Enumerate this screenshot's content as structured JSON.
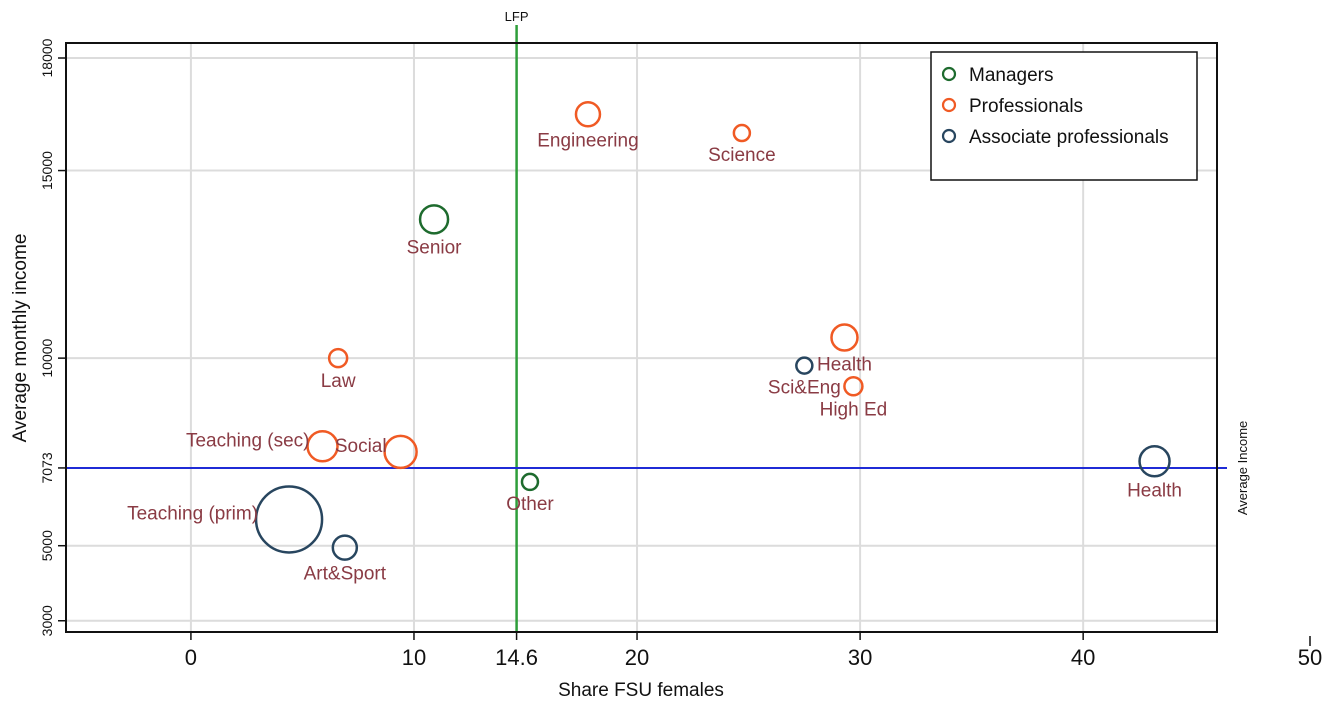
{
  "chart_data": {
    "type": "scatter",
    "title": "",
    "xlabel": "Share FSU females",
    "ylabel": "Average monthly income",
    "xlim": [
      -5.6,
      46
    ],
    "ylim": [
      2700,
      18400
    ],
    "xticks": [
      "0",
      "10",
      "14.6",
      "20",
      "30",
      "40"
    ],
    "xtick_values": [
      0,
      10,
      14.6,
      20,
      30,
      40
    ],
    "extra_xtick": {
      "label": "50",
      "value": 50
    },
    "yticks": [
      "3000",
      "5000",
      "7073",
      "10000",
      "15000",
      "18000"
    ],
    "ytick_values": [
      3000,
      5000,
      7073,
      10000,
      15000,
      18000
    ],
    "grid": true,
    "legend_position": "top-right",
    "reference_lines": {
      "vertical": {
        "x": 14.6,
        "label": "LFP",
        "color": "#2e9e3a"
      },
      "horizontal": {
        "y": 7073,
        "label": "Average Income",
        "color": "#1f2bd6"
      }
    },
    "series": [
      {
        "name": "Managers",
        "color": "#1e6b2e",
        "points": [
          {
            "label": "Senior",
            "x": 10.9,
            "y": 13700,
            "size": 14,
            "label_pos": "below"
          },
          {
            "label": "Other",
            "x": 15.2,
            "y": 6700,
            "size": 8,
            "label_pos": "below"
          }
        ]
      },
      {
        "name": "Professionals",
        "color": "#f05a24",
        "points": [
          {
            "label": "Engineering",
            "x": 17.8,
            "y": 16500,
            "size": 12,
            "label_pos": "below"
          },
          {
            "label": "Science",
            "x": 24.7,
            "y": 16000,
            "size": 8,
            "label_pos": "below"
          },
          {
            "label": "Law",
            "x": 6.6,
            "y": 10000,
            "size": 9,
            "label_pos": "below"
          },
          {
            "label": "Health",
            "x": 29.3,
            "y": 10550,
            "size": 13,
            "label_pos": "below"
          },
          {
            "label": "High Ed",
            "x": 29.7,
            "y": 9250,
            "size": 9,
            "label_pos": "below"
          },
          {
            "label": "Teaching (sec)",
            "x": 5.9,
            "y": 7650,
            "size": 15,
            "label_pos": "left"
          },
          {
            "label": "Social",
            "x": 9.4,
            "y": 7500,
            "size": 16,
            "label_pos": "left"
          }
        ]
      },
      {
        "name": "Associate professionals",
        "color": "#28465f",
        "points": [
          {
            "label": "Sci&Eng",
            "x": 27.5,
            "y": 9800,
            "size": 8,
            "label_pos": "below"
          },
          {
            "label": "Health",
            "x": 43.2,
            "y": 7250,
            "size": 15,
            "label_pos": "below"
          },
          {
            "label": "Teaching (prim)",
            "x": 4.4,
            "y": 5700,
            "size": 33,
            "label_pos": "left"
          },
          {
            "label": "Art&Sport",
            "x": 6.9,
            "y": 4950,
            "size": 12,
            "label_pos": "below"
          }
        ]
      }
    ]
  }
}
